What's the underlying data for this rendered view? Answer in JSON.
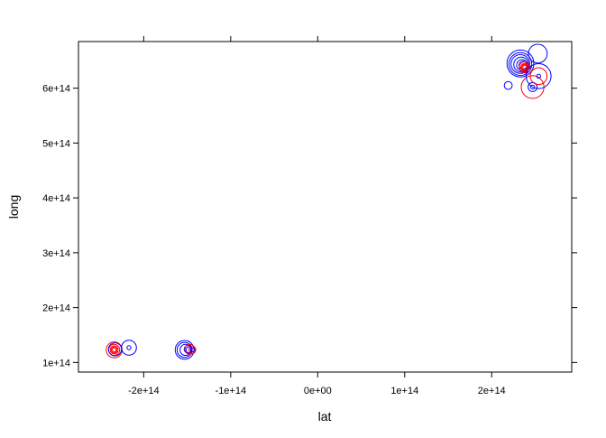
{
  "chart_data": {
    "type": "scatter",
    "title": "",
    "xlabel": "lat",
    "ylabel": "long",
    "xlim": [
      -275000000000000.0,
      292000000000000.0
    ],
    "ylim": [
      82500000000000.0,
      685000000000000.0
    ],
    "grid": false,
    "x_ticks": [
      {
        "value": -200000000000000.0,
        "label": "-2e+14"
      },
      {
        "value": -100000000000000.0,
        "label": "-1e+14"
      },
      {
        "value": 0,
        "label": "0e+00"
      },
      {
        "value": 100000000000000.0,
        "label": "1e+14"
      },
      {
        "value": 200000000000000.0,
        "label": "2e+14"
      }
    ],
    "y_ticks": [
      {
        "value": 100000000000000.0,
        "label": "1e+14"
      },
      {
        "value": 200000000000000.0,
        "label": "2e+14"
      },
      {
        "value": 300000000000000.0,
        "label": "3e+14"
      },
      {
        "value": 400000000000000.0,
        "label": "4e+14"
      },
      {
        "value": 500000000000000.0,
        "label": "5e+14"
      },
      {
        "value": 600000000000000.0,
        "label": "6e+14"
      }
    ],
    "colors": {
      "red": "#ff0000",
      "blue": "#0000ff"
    },
    "points": [
      {
        "x": -234000000000000.0,
        "y": 123000000000000.0,
        "size": 0.8,
        "color": "red"
      },
      {
        "x": -234000000000000.0,
        "y": 123000000000000.0,
        "size": 0.55,
        "color": "red"
      },
      {
        "x": -234000000000000.0,
        "y": 123000000000000.0,
        "size": 0.4,
        "color": "red"
      },
      {
        "x": -234000000000000.0,
        "y": 123000000000000.0,
        "size": 0.3,
        "color": "red"
      },
      {
        "x": -234000000000000.0,
        "y": 123000000000000.0,
        "size": 0.2,
        "color": "red"
      },
      {
        "x": -233000000000000.0,
        "y": 124000000000000.0,
        "size": 0.65,
        "color": "blue"
      },
      {
        "x": -217000000000000.0,
        "y": 127000000000000.0,
        "size": 0.75,
        "color": "blue"
      },
      {
        "x": -217000000000000.0,
        "y": 127000000000000.0,
        "size": 0.2,
        "color": "blue"
      },
      {
        "x": -153000000000000.0,
        "y": 123000000000000.0,
        "size": 0.95,
        "color": "blue"
      },
      {
        "x": -153000000000000.0,
        "y": 123000000000000.0,
        "size": 0.75,
        "color": "blue"
      },
      {
        "x": -152000000000000.0,
        "y": 123000000000000.0,
        "size": 0.55,
        "color": "blue"
      },
      {
        "x": -149000000000000.0,
        "y": 124000000000000.0,
        "size": 0.4,
        "color": "blue"
      },
      {
        "x": -148000000000000.0,
        "y": 123000000000000.0,
        "size": 0.3,
        "color": "blue"
      },
      {
        "x": -147000000000000.0,
        "y": 124000000000000.0,
        "size": 0.5,
        "color": "red"
      },
      {
        "x": -144000000000000.0,
        "y": 123000000000000.0,
        "size": 0.35,
        "color": "red"
      },
      {
        "x": -144000000000000.0,
        "y": 123000000000000.0,
        "size": 0.2,
        "color": "blue"
      },
      {
        "x": 233000000000000.0,
        "y": 645000000000000.0,
        "size": 1.35,
        "color": "blue"
      },
      {
        "x": 233000000000000.0,
        "y": 644000000000000.0,
        "size": 1.15,
        "color": "blue"
      },
      {
        "x": 233000000000000.0,
        "y": 644000000000000.0,
        "size": 0.95,
        "color": "blue"
      },
      {
        "x": 234000000000000.0,
        "y": 643000000000000.0,
        "size": 0.75,
        "color": "blue"
      },
      {
        "x": 235000000000000.0,
        "y": 642000000000000.0,
        "size": 0.55,
        "color": "blue"
      },
      {
        "x": 236000000000000.0,
        "y": 642000000000000.0,
        "size": 0.4,
        "color": "blue"
      },
      {
        "x": 238000000000000.0,
        "y": 638000000000000.0,
        "size": 0.55,
        "color": "red"
      },
      {
        "x": 238000000000000.0,
        "y": 638000000000000.0,
        "size": 0.4,
        "color": "red"
      },
      {
        "x": 238000000000000.0,
        "y": 638000000000000.0,
        "size": 0.3,
        "color": "red"
      },
      {
        "x": 238000000000000.0,
        "y": 638000000000000.0,
        "size": 0.2,
        "color": "red"
      },
      {
        "x": 219000000000000.0,
        "y": 605000000000000.0,
        "size": 0.4,
        "color": "blue"
      },
      {
        "x": 253000000000000.0,
        "y": 663000000000000.0,
        "size": 0.95,
        "color": "blue"
      },
      {
        "x": 247000000000000.0,
        "y": 602000000000000.0,
        "size": 1.15,
        "color": "red"
      },
      {
        "x": 247000000000000.0,
        "y": 602000000000000.0,
        "size": 0.45,
        "color": "blue"
      },
      {
        "x": 247000000000000.0,
        "y": 602000000000000.0,
        "size": 0.2,
        "color": "blue"
      },
      {
        "x": 254000000000000.0,
        "y": 622000000000000.0,
        "size": 1.25,
        "color": "blue"
      },
      {
        "x": 254000000000000.0,
        "y": 622000000000000.0,
        "size": 0.85,
        "color": "red"
      },
      {
        "x": 254000000000000.0,
        "y": 622000000000000.0,
        "size": 0.2,
        "color": "blue"
      }
    ]
  }
}
